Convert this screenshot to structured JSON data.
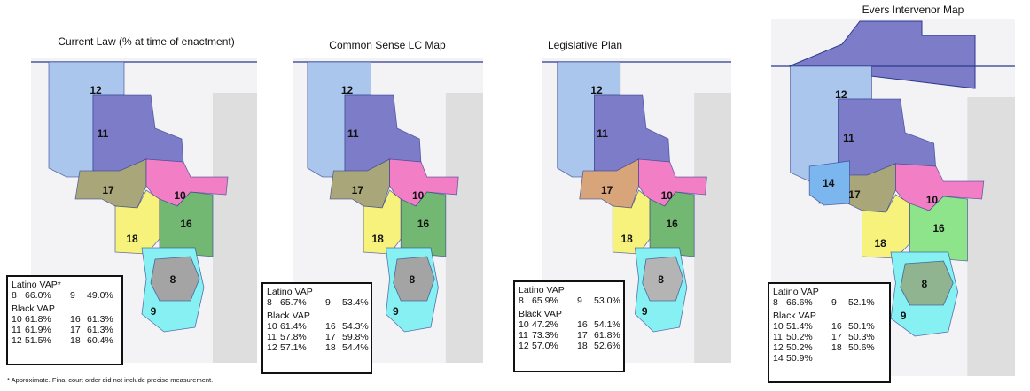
{
  "panels": [
    {
      "title": "Current Law (% at time of enactment)",
      "districts": [
        {
          "label": "12",
          "color": "#aac6ec"
        },
        {
          "label": "11",
          "color": "#7c7cc8"
        },
        {
          "label": "17",
          "color": "#a9a779"
        },
        {
          "label": "10",
          "color": "#f27fc6"
        },
        {
          "label": "18",
          "color": "#f6f27c"
        },
        {
          "label": "16",
          "color": "#72b872"
        },
        {
          "label": "9",
          "color": "#86f0f2"
        },
        {
          "label": "8",
          "color": "#a4a4a4"
        }
      ],
      "latino_vap": {
        "heading": "Latino VAP*",
        "rows": [
          [
            "8",
            "66.0%",
            "9",
            "49.0%"
          ]
        ]
      },
      "black_vap": {
        "heading": "Black VAP",
        "rows": [
          [
            "10",
            "61.8%",
            "16",
            "61.3%"
          ],
          [
            "11",
            "61.9%",
            "17",
            "61.3%"
          ],
          [
            "12",
            "51.5%",
            "18",
            "60.4%"
          ]
        ]
      }
    },
    {
      "title": "Common Sense LC Map",
      "districts": [
        {
          "label": "12",
          "color": "#aac6ec"
        },
        {
          "label": "11",
          "color": "#7c7cc8"
        },
        {
          "label": "17",
          "color": "#a9a779"
        },
        {
          "label": "10",
          "color": "#f27fc6"
        },
        {
          "label": "18",
          "color": "#f6f27c"
        },
        {
          "label": "16",
          "color": "#72b872"
        },
        {
          "label": "9",
          "color": "#86f0f2"
        },
        {
          "label": "8",
          "color": "#a4a4a4"
        }
      ],
      "latino_vap": {
        "heading": "Latino VAP",
        "rows": [
          [
            "8",
            "65.7%",
            "9",
            "53.4%"
          ]
        ]
      },
      "black_vap": {
        "heading": "Black VAP",
        "rows": [
          [
            "10",
            "61.4%",
            "16",
            "54.3%"
          ],
          [
            "11",
            "57.8%",
            "17",
            "59.8%"
          ],
          [
            "12",
            "57.1%",
            "18",
            "54.4%"
          ]
        ]
      }
    },
    {
      "title": "Legislative Plan",
      "districts": [
        {
          "label": "12",
          "color": "#aac6ec"
        },
        {
          "label": "11",
          "color": "#7c7cc8"
        },
        {
          "label": "17",
          "color": "#d8a47a"
        },
        {
          "label": "10",
          "color": "#f27fc6"
        },
        {
          "label": "18",
          "color": "#f6f27c"
        },
        {
          "label": "16",
          "color": "#72b872"
        },
        {
          "label": "9",
          "color": "#86f0f2"
        },
        {
          "label": "8",
          "color": "#b4b4b4"
        }
      ],
      "latino_vap": {
        "heading": "Latino VAP",
        "rows": [
          [
            "8",
            "65.9%",
            "9",
            "53.0%"
          ]
        ]
      },
      "black_vap": {
        "heading": "Black VAP",
        "rows": [
          [
            "10",
            "47.2%",
            "16",
            "54.1%"
          ],
          [
            "11",
            "73.3%",
            "17",
            "61.8%"
          ],
          [
            "12",
            "57.0%",
            "18",
            "52.6%"
          ]
        ]
      }
    },
    {
      "title": "Evers Intervenor Map",
      "districts": [
        {
          "label": "12",
          "color": "#aac6ec"
        },
        {
          "label": "11",
          "color": "#7c7cc8"
        },
        {
          "label": "17",
          "color": "#a9a779"
        },
        {
          "label": "10",
          "color": "#f27fc6"
        },
        {
          "label": "18",
          "color": "#f6f27c"
        },
        {
          "label": "16",
          "color": "#8ee48a"
        },
        {
          "label": "9",
          "color": "#86f0f2"
        },
        {
          "label": "8",
          "color": "#8fb48f"
        },
        {
          "label": "14",
          "color": "#7cb6ee"
        }
      ],
      "latino_vap": {
        "heading": "Latino VAP",
        "rows": [
          [
            "8",
            "66.6%",
            "9",
            "52.1%"
          ]
        ]
      },
      "black_vap": {
        "heading": "Black VAP",
        "rows": [
          [
            "10",
            "51.4%",
            "16",
            "50.1%"
          ],
          [
            "11",
            "50.2%",
            "17",
            "50.3%"
          ],
          [
            "12",
            "50.2%",
            "18",
            "50.6%"
          ],
          [
            "14",
            "50.9%"
          ]
        ]
      }
    }
  ],
  "footnote": "* Approximate. Final court order did not include precise measurement."
}
